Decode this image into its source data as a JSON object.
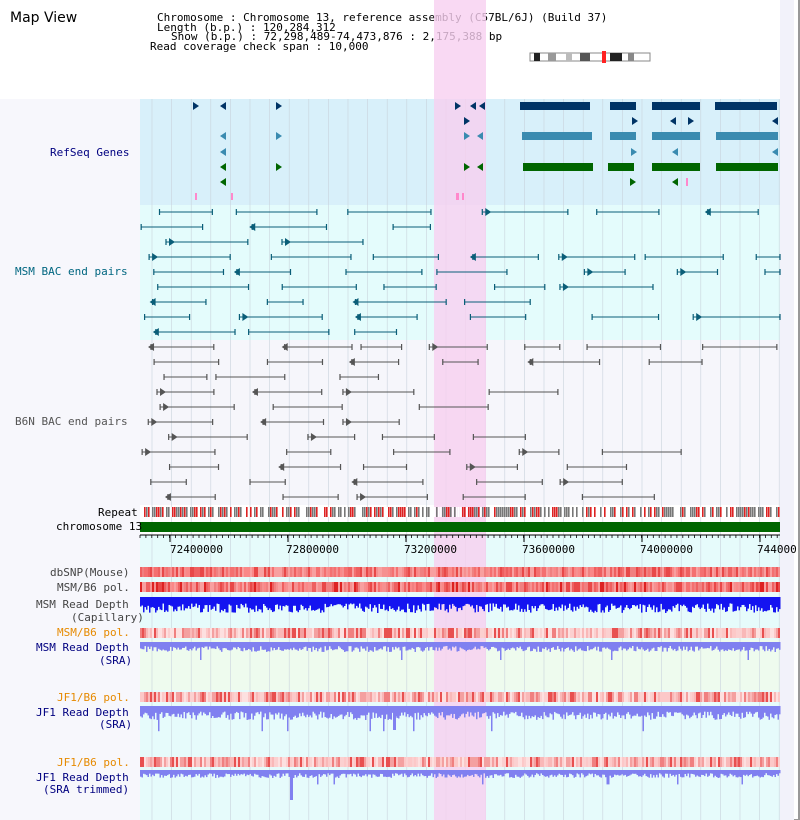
{
  "title": "Map View",
  "header": {
    "lines": [
      "Chromosome     : Chromosome 13, reference assembly (C57BL/6J) (Build 37)",
      "Length (b.p.) : 120,284,312",
      "Show (b.p.) : 72,298,489-74,473,876 : 2,175,388 bp",
      "Read coverage check span : 10,000"
    ]
  },
  "tracks": {
    "refseq": "RefSeq Genes",
    "msm_bac": "MSM BAC end pairs",
    "b6n_bac": "B6N BAC end pairs",
    "repeat": "Repeat",
    "chromosome": "chromosome 13",
    "dbsnp": "dbSNP(Mouse)",
    "msm_b6_pol": "MSM/B6 pol.",
    "msm_depth_cap_1": "MSM Read Depth",
    "msm_depth_cap_2": "(Capillary)",
    "msm_b6_pol_2": "MSM/B6 pol.",
    "msm_depth_sra_1": "MSM Read Depth",
    "msm_depth_sra_2": "(SRA)",
    "jf1_b6_pol": "JF1/B6 pol.",
    "jf1_depth_sra_1": "JF1 Read Depth",
    "jf1_depth_sra_2": "(SRA)",
    "jf1_b6_pol_2": "JF1/B6 pol.",
    "jf1_depth_trim_1": "JF1 Read Depth",
    "jf1_depth_trim_2": "(SRA trimmed)"
  },
  "axis": {
    "ticks": [
      "72400000",
      "72800000",
      "73200000",
      "73600000",
      "74000000",
      "744000"
    ]
  },
  "colors": {
    "refseq_bg": "#d8f0fa",
    "msm_bg": "#e4fcfc",
    "highlight": "#f8d0f0",
    "gene_dark": "#003466",
    "gene_mid": "#3a8bb0",
    "gene_green": "#006600",
    "msm_line": "#0a5e78",
    "b6n_line": "#555555",
    "chrom_bar": "#006600",
    "depth_blue": "#1414f0",
    "depth_sra": "#8080f0",
    "label_navy": "#000080",
    "label_orange": "#e68a00",
    "label_teal": "#006680"
  }
}
